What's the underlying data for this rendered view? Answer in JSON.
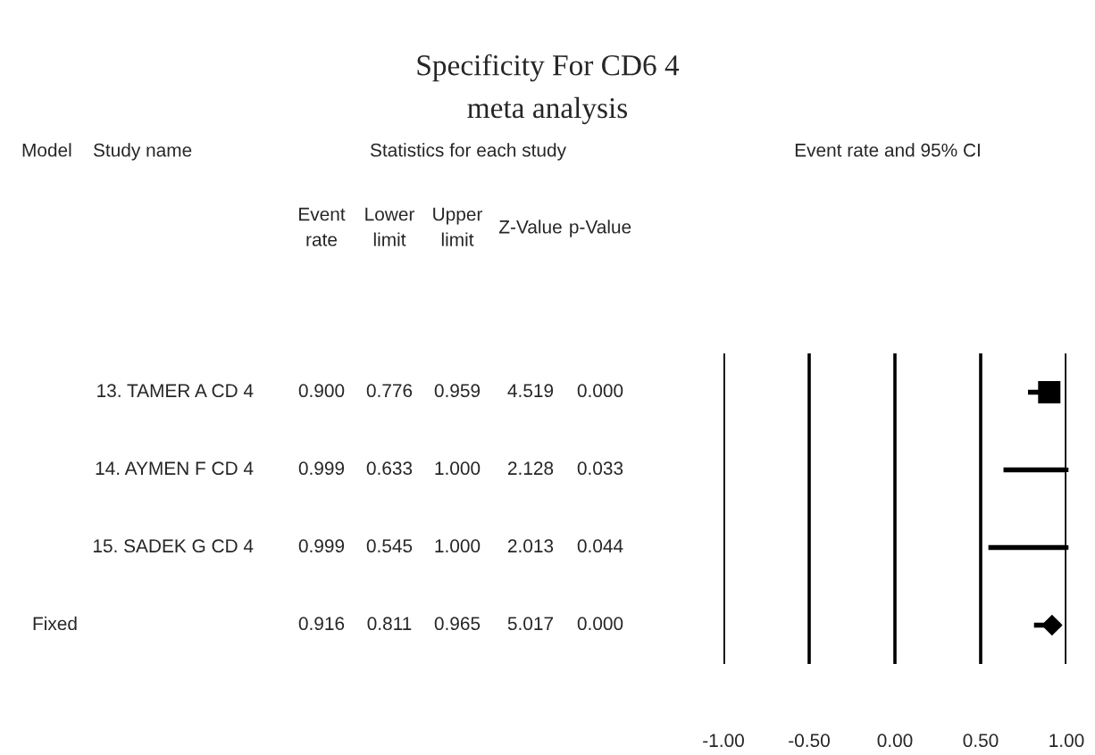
{
  "chart_data": [
    {
      "type": "other",
      "title": "Specificity For CD6 4",
      "subtitle": "meta analysis",
      "annotations": [
        "Model",
        "Study name",
        "Statistics for each study",
        "Event rate and 95% CI"
      ],
      "categories": [
        "Event\nrate",
        "Lower\nlimit",
        "Upper\nlimit",
        "Z-Value",
        "p-Value"
      ],
      "y_categories": [
        "13. TAMER A CD 4",
        "14. AYMEN F CD 4",
        "15. SADEK G CD 4",
        null
      ],
      "y2_categories": [
        null,
        null,
        null,
        "Fixed"
      ],
      "cell_labels": [
        [
          "0.900",
          "0.776",
          "0.959",
          "4.519",
          "0.000"
        ],
        [
          "0.999",
          "0.633",
          "1.000",
          "2.128",
          "0.033"
        ],
        [
          "0.999",
          "0.545",
          "1.000",
          "2.013",
          "0.044"
        ],
        [
          "0.916",
          "0.811",
          "0.965",
          "5.017",
          "0.000"
        ]
      ]
    },
    {
      "type": "scatter",
      "orientation": "horizontal",
      "categories": [
        null,
        null,
        null,
        null
      ],
      "xlim": [
        -1,
        1
      ],
      "xticks": [
        {
          "value": -1,
          "label": "-1.00"
        },
        {
          "value": -0.5,
          "label": "-0.50"
        },
        {
          "value": 0,
          "label": "0.00"
        },
        {
          "value": 0.5,
          "label": "0.50"
        },
        {
          "value": 1,
          "label": "1.00"
        }
      ],
      "grid": "x",
      "series": [
        {
          "type": "bubble",
          "marker": "square",
          "color": "#000000",
          "values": [
            0.9,
            0.999,
            0.999,
            null
          ],
          "sizes": [
            1,
            0.01,
            0.01,
            null
          ],
          "errors": [
            [
              0.776,
              0.959
            ],
            [
              0.633,
              1.0
            ],
            [
              0.545,
              1.0
            ],
            null
          ]
        },
        {
          "type": "scatter",
          "marker": "diamond",
          "color": "#000000",
          "values": [
            null,
            null,
            null,
            0.916
          ],
          "errors": [
            null,
            null,
            null,
            [
              0.811,
              0.965
            ]
          ]
        }
      ]
    }
  ]
}
